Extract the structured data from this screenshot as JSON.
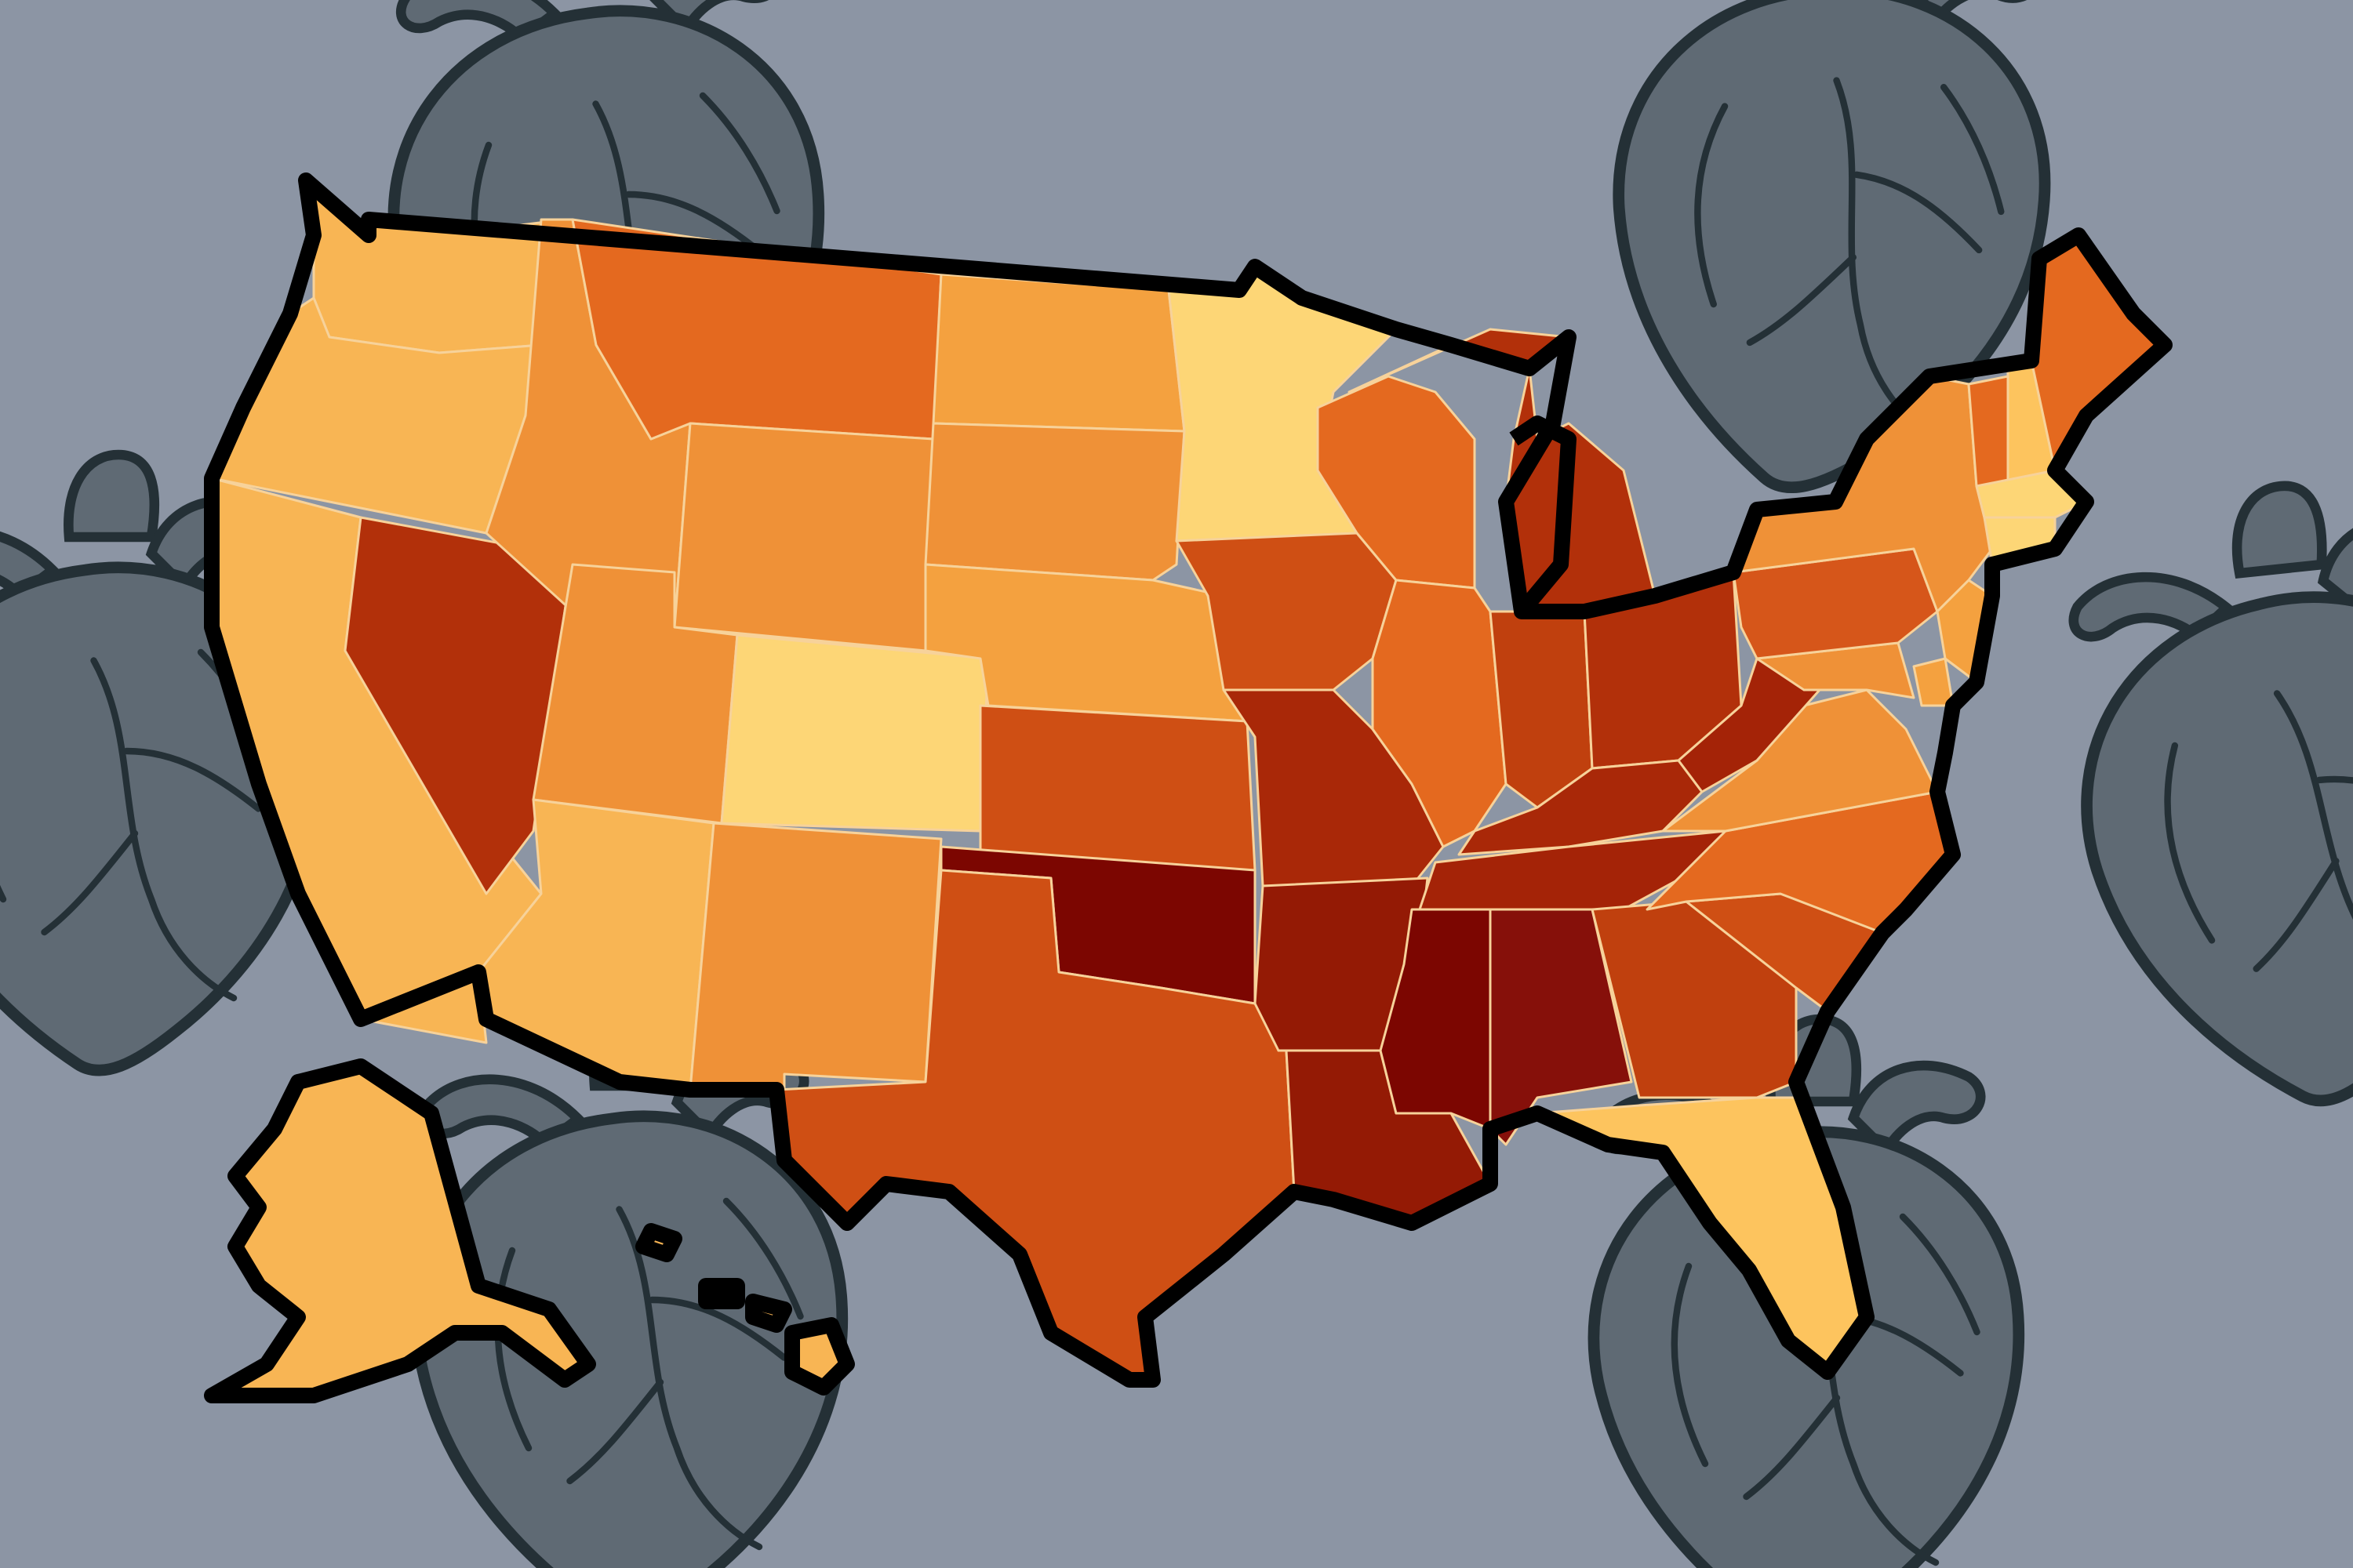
{
  "background_color": "#8c95a4",
  "decoration_icon": "anatomical-heart",
  "map": {
    "type": "choropleth",
    "region": "United States",
    "legend": "",
    "scale_colors": [
      "#fdd676",
      "#f8b554",
      "#ef9137",
      "#e4691f",
      "#cf4f14",
      "#b2300a",
      "#941a05",
      "#7c0601"
    ],
    "states": {
      "WA": "#f8b554",
      "OR": "#f8b554",
      "CA": "#f8b554",
      "NV": "#b2300a",
      "ID": "#ef9137",
      "MT": "#e4691f",
      "WY": "#ef9137",
      "UT": "#ef9137",
      "AZ": "#f8b554",
      "CO": "#fdd676",
      "NM": "#ef9137",
      "ND": "#f4a13f",
      "SD": "#ef9137",
      "NE": "#f4a13f",
      "KS": "#cf4f14",
      "OK": "#7c0601",
      "TX": "#cf4f14",
      "MN": "#fdd676",
      "IA": "#cf4f14",
      "MO": "#a92808",
      "AR": "#941a05",
      "LA": "#941a05",
      "WI": "#e4691f",
      "IL": "#e4691f",
      "MI": "#b2300a",
      "IN": "#c0400e",
      "OH": "#b2300a",
      "KY": "#a92808",
      "TN": "#a42307",
      "MS": "#7c0601",
      "AL": "#86100a",
      "GA": "#c0400e",
      "FL": "#fdc45e",
      "SC": "#cf4f14",
      "NC": "#e4691f",
      "VA": "#ef9137",
      "WV": "#a42307",
      "PA": "#d6561a",
      "NY": "#ef9137",
      "VT": "#e4691f",
      "NH": "#fdc45e",
      "ME": "#e4691f",
      "MA": "#fdd676",
      "CT": "#fdd676",
      "NJ": "#f4a13f",
      "DE": "#f4a13f",
      "MD": "#ef9137",
      "AK": "#f8b554",
      "HI": "#f8b554"
    }
  }
}
